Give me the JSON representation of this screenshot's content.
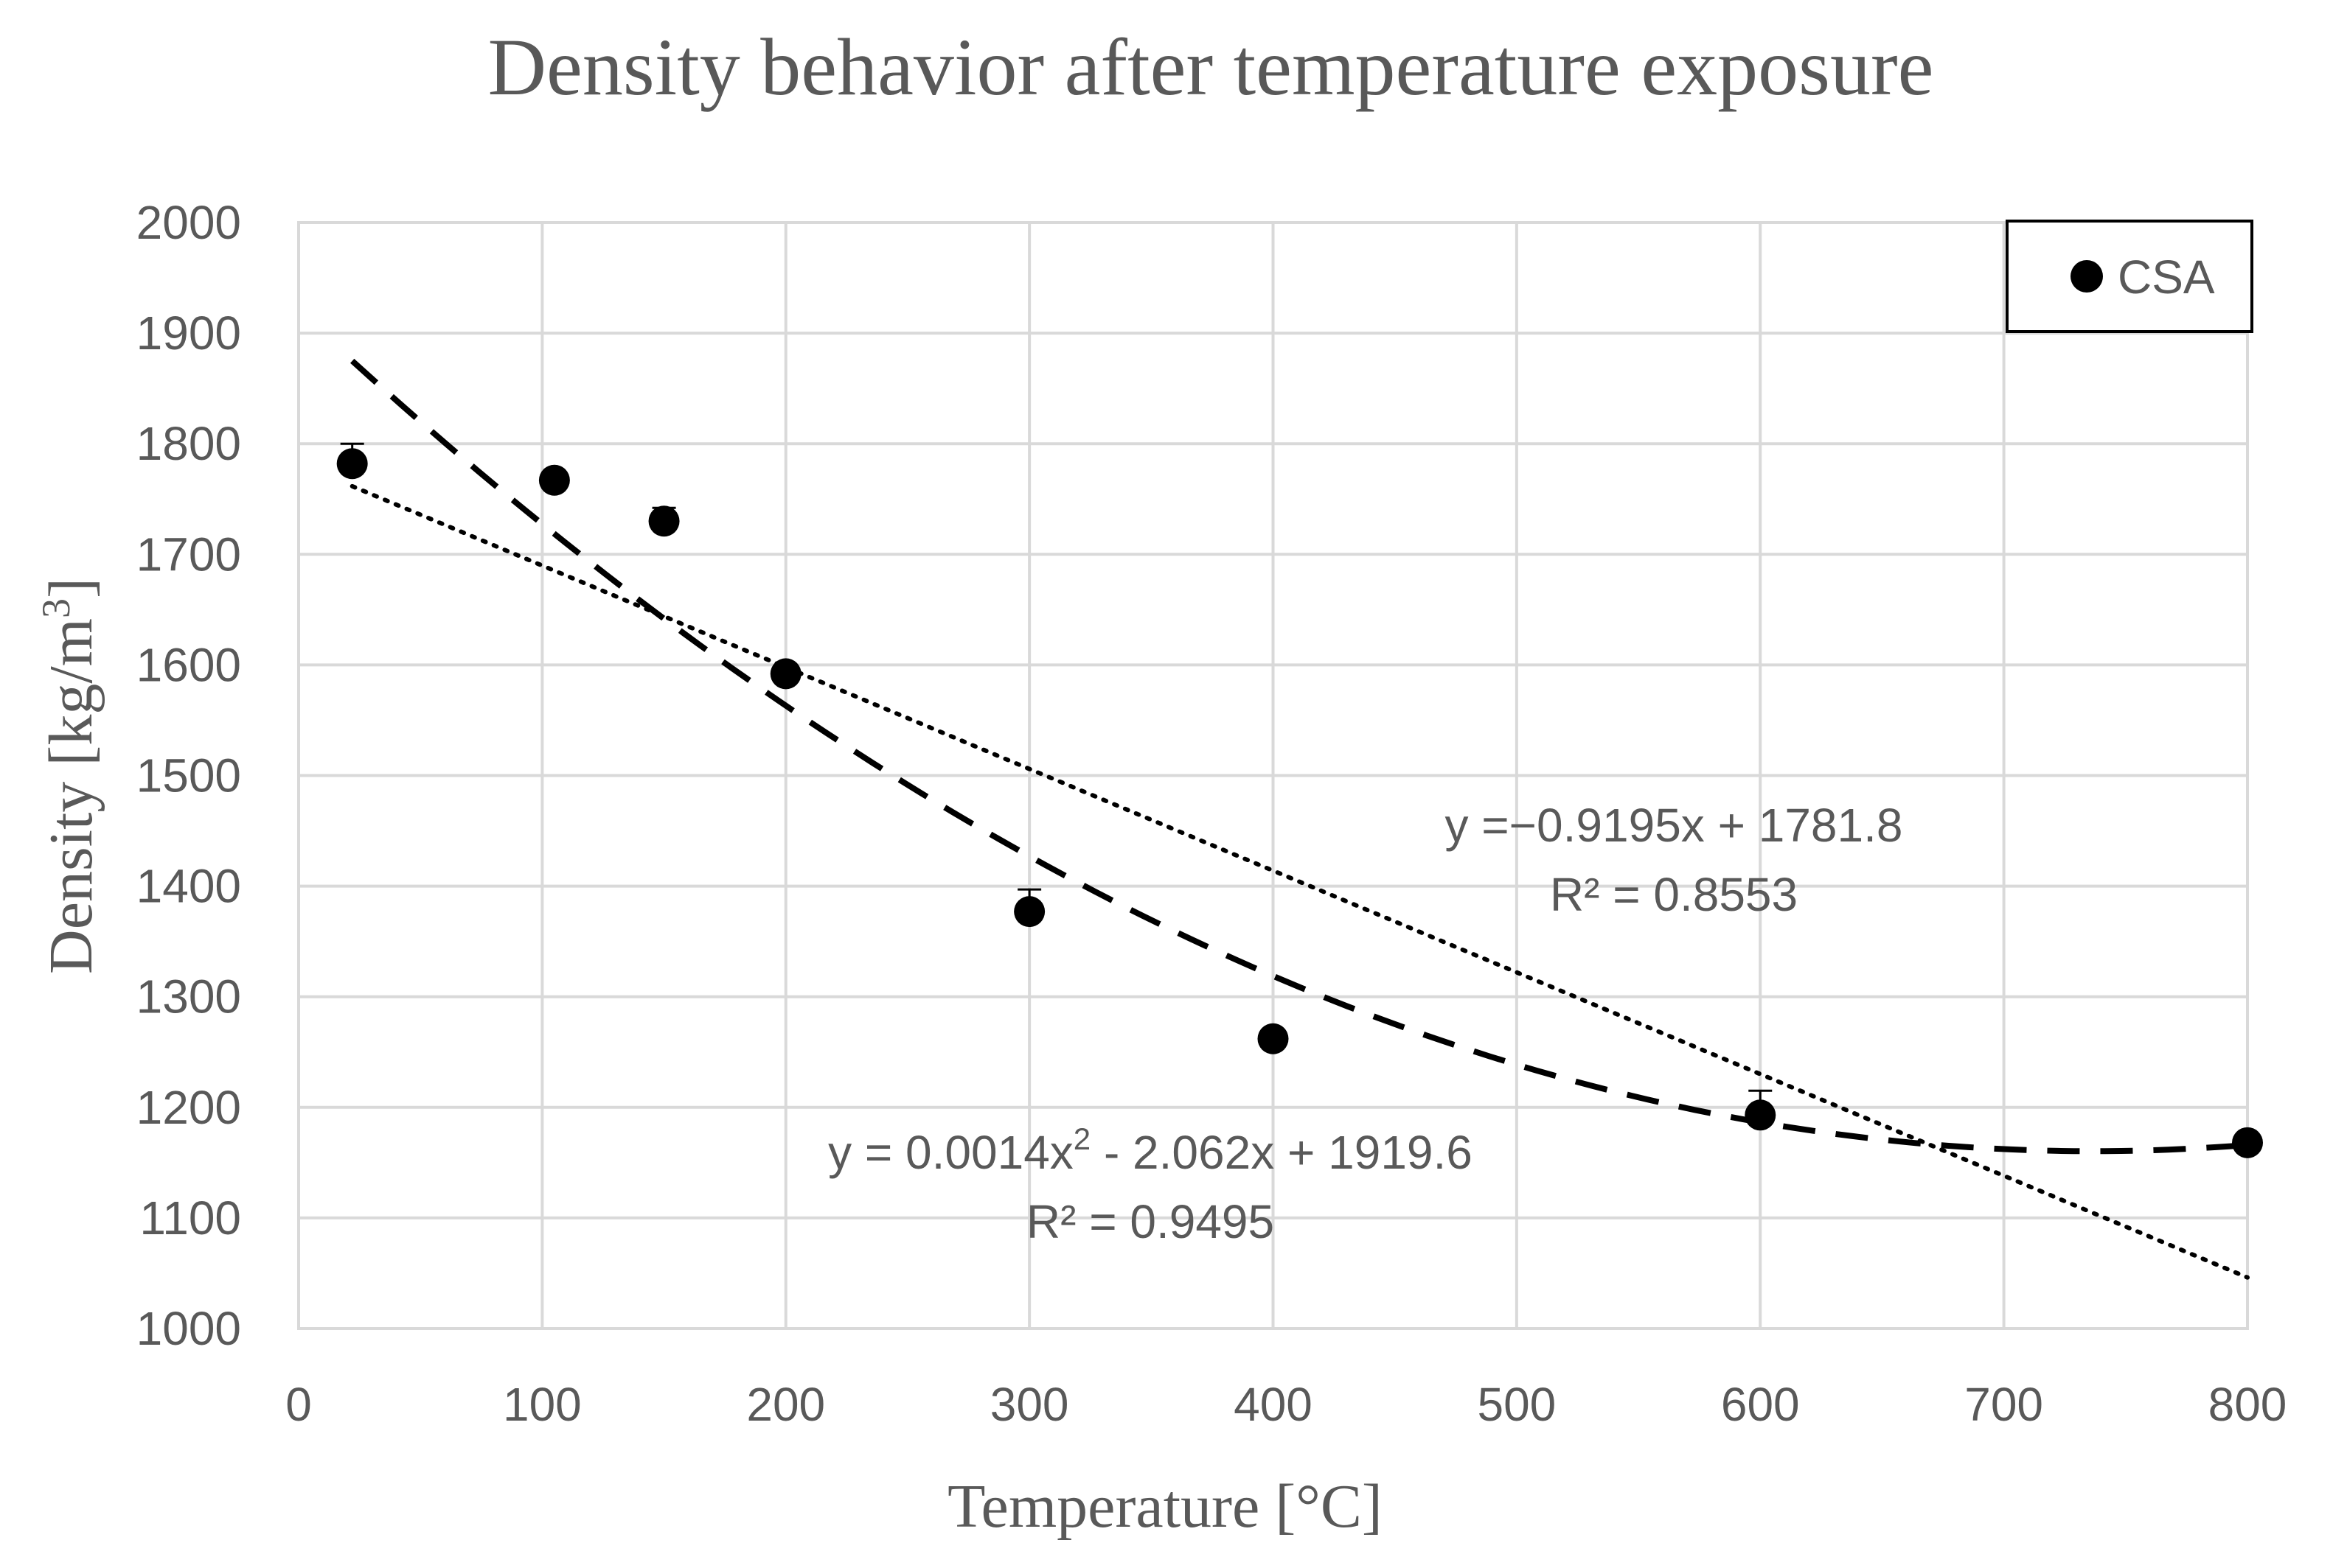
{
  "chart_data": {
    "type": "scatter",
    "title": "Density behavior after temperature exposure",
    "xlabel": "Temperature [°C]",
    "ylabel_main": "Density [kg/m",
    "ylabel_sup": "3",
    "ylabel_end": "]",
    "xlim": [
      0,
      800
    ],
    "ylim": [
      1000,
      2000
    ],
    "xticks": [
      0,
      100,
      200,
      300,
      400,
      500,
      600,
      700,
      800
    ],
    "yticks": [
      1000,
      1100,
      1200,
      1300,
      1400,
      1500,
      1600,
      1700,
      1800,
      1900,
      2000
    ],
    "grid": true,
    "legend_position": "top-right",
    "series": [
      {
        "name": "CSA",
        "marker": "circle",
        "color": "#000000",
        "x": [
          22,
          105,
          150,
          200,
          300,
          400,
          600,
          800
        ],
        "y": [
          1782,
          1767,
          1730,
          1592,
          1377,
          1262,
          1193,
          1168
        ],
        "error": [
          18,
          0,
          12,
          0,
          20,
          0,
          22,
          0
        ]
      }
    ],
    "trendlines": [
      {
        "kind": "linear",
        "style": "dotted",
        "coefficients": {
          "slope": -0.9195,
          "intercept": 1781.8
        },
        "x_range": [
          22,
          800
        ],
        "equation": "y =−0.9195x + 1781.8",
        "r2": "R² = 0.8553"
      },
      {
        "kind": "polynomial",
        "style": "dashed",
        "coefficients": {
          "a": 0.0014,
          "b": -2.062,
          "c": 1919.6
        },
        "x_range": [
          22,
          800
        ],
        "equation_prefix": "y = 0.0014x",
        "equation_sup": "2",
        "equation_suffix": " - 2.062x + 1919.6",
        "r2": "R² = 0.9495"
      }
    ]
  }
}
